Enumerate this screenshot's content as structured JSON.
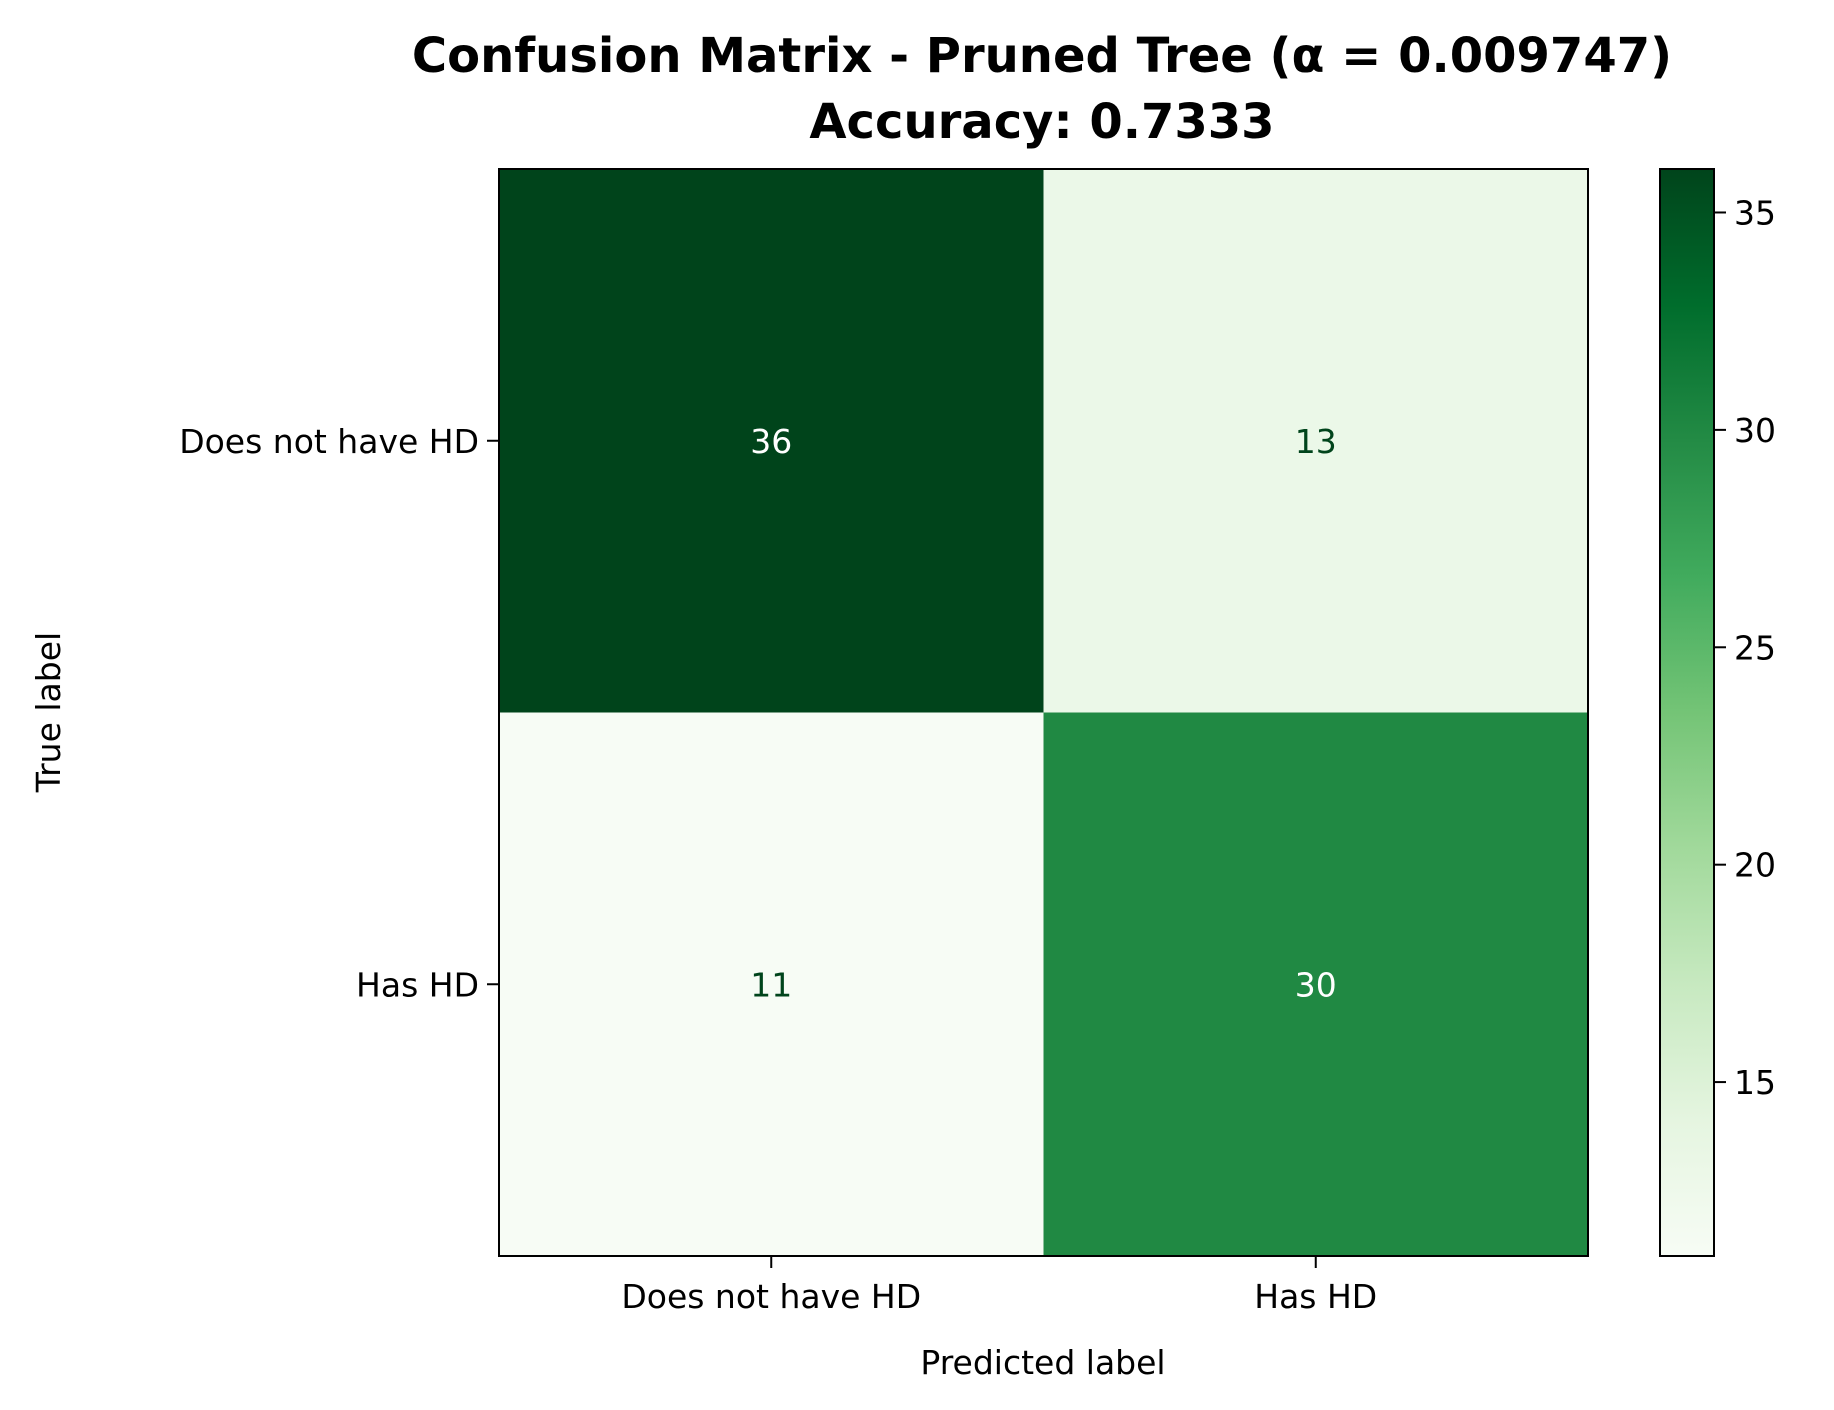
{
  "chart_data": {
    "type": "heatmap",
    "title_lines": [
      "Confusion Matrix - Pruned Tree (α = 0.009747)",
      "Accuracy: 0.7333"
    ],
    "xlabel": "Predicted label",
    "ylabel": "True label",
    "x_categories": [
      "Does not have HD",
      "Has HD"
    ],
    "y_categories": [
      "Does not have HD",
      "Has HD"
    ],
    "matrix": [
      [
        36,
        13
      ],
      [
        11,
        30
      ]
    ],
    "colormap": "Greens",
    "colorbar": {
      "range": [
        11,
        36
      ],
      "ticks": [
        15,
        20,
        25,
        30,
        35
      ]
    },
    "grid": false,
    "colors": {
      "cell_36": "#00441b",
      "cell_13": "#ebf7e7",
      "cell_11": "#f7fcf5",
      "cell_30": "#228a44",
      "text_light": "#ffffff",
      "text_dark": "#00441b"
    }
  }
}
